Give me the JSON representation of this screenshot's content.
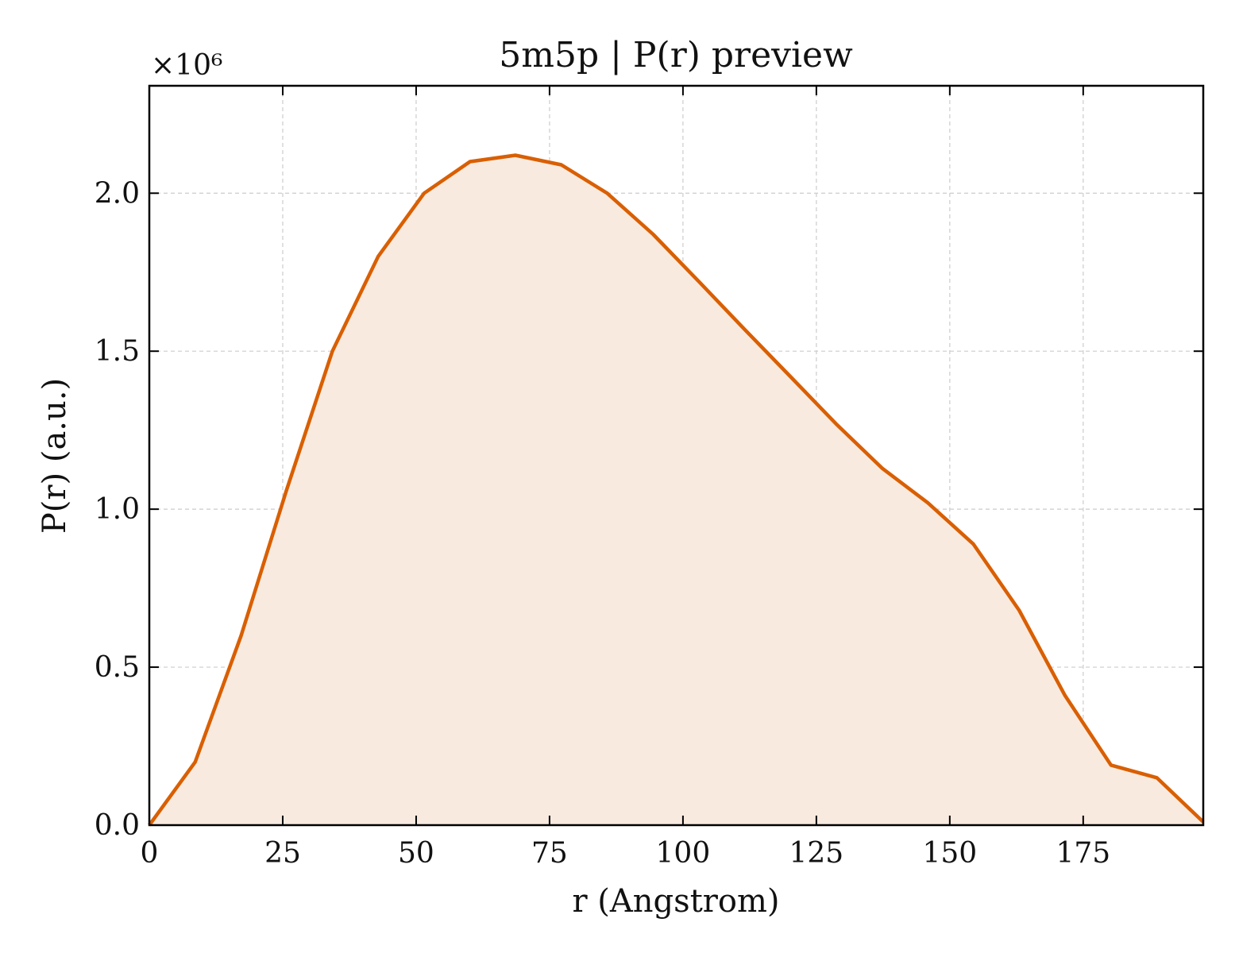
{
  "chart_data": {
    "type": "area",
    "title": "5m5p | P(r) preview",
    "xlabel": "r (Angstrom)",
    "ylabel": "P(r) (a.u.)",
    "y_offset_label": "×10⁶",
    "y_scale_factor": 1000000,
    "xlim": [
      0,
      197.5
    ],
    "ylim": [
      0,
      2.34
    ],
    "x_ticks": [
      0,
      25,
      50,
      75,
      100,
      125,
      150,
      175
    ],
    "x_tick_labels": [
      "0",
      "25",
      "50",
      "75",
      "100",
      "125",
      "150",
      "175"
    ],
    "y_ticks": [
      0,
      0.5,
      1.0,
      1.5,
      2.0
    ],
    "y_tick_labels": [
      "0.0",
      "0.5",
      "1.0",
      "1.5",
      "2.0"
    ],
    "grid": true,
    "series": [
      {
        "color": "#d95f02",
        "fill_color": "#f9eadf",
        "x": [
          0,
          8.6,
          17.2,
          25.7,
          34.3,
          42.9,
          51.5,
          60.1,
          68.6,
          77.2,
          85.8,
          94.4,
          103.0,
          111.5,
          120.1,
          128.7,
          137.3,
          145.9,
          154.4,
          163.0,
          171.6,
          180.2,
          188.8,
          197.5
        ],
        "y": [
          0,
          0.2,
          0.6,
          1.06,
          1.5,
          1.8,
          2.0,
          2.1,
          2.12,
          2.09,
          2.0,
          1.87,
          1.72,
          1.57,
          1.42,
          1.27,
          1.13,
          1.02,
          0.89,
          0.68,
          0.41,
          0.19,
          0.15,
          0.01
        ]
      }
    ]
  }
}
